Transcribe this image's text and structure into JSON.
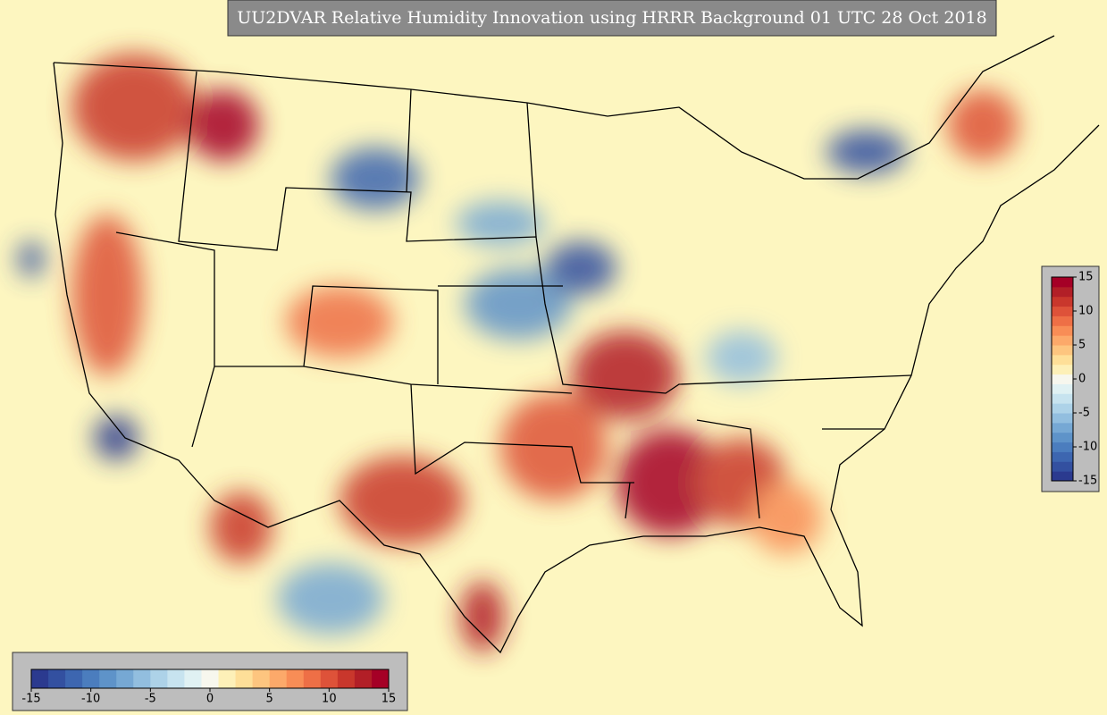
{
  "title": "UU2DVAR Relative Humidity Innovation using HRRR Background 01 UTC 28 Oct 2018",
  "colorbar": {
    "lim": [
      -15,
      15
    ],
    "ticks": [
      -15,
      -10,
      -5,
      0,
      5,
      10,
      15
    ],
    "colors": [
      "#2b3a8f",
      "#3350a0",
      "#3d66b0",
      "#4b7dbe",
      "#5e93c9",
      "#76a8d4",
      "#92bedf",
      "#add2e8",
      "#c7e3ef",
      "#e0f1f3",
      "#f7f7ee",
      "#fdf0b8",
      "#fedf98",
      "#fdc57f",
      "#fca96a",
      "#f88d56",
      "#ee6f46",
      "#de5239",
      "#c9372c",
      "#b21f27",
      "#a50026"
    ]
  }
}
